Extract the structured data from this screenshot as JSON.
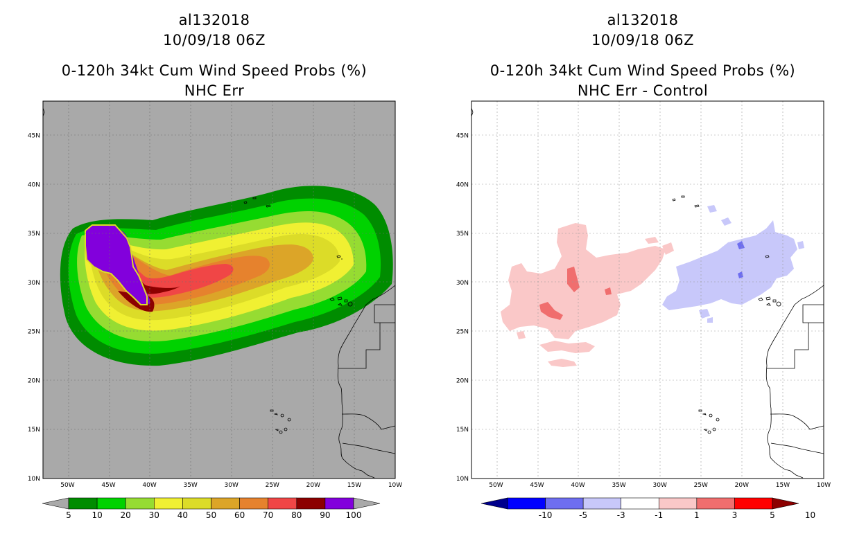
{
  "left": {
    "storm_id": "al132018",
    "datetime": "10/09/18 06Z",
    "title": "0-120h 34kt Cum Wind Speed Probs (%)",
    "subtitle": "NHC Err",
    "colorbar": {
      "labels": [
        "5",
        "10",
        "20",
        "30",
        "40",
        "50",
        "60",
        "70",
        "80",
        "90",
        "100"
      ],
      "colors": [
        "#008c00",
        "#00d200",
        "#96dc32",
        "#f0f032",
        "#dcdc28",
        "#dca528",
        "#e6822d",
        "#f04646",
        "#8c0000",
        "#8200dc"
      ],
      "under": "#a9a9a9",
      "over": "#a9a9a9"
    },
    "background": "#a9a9a9"
  },
  "right": {
    "storm_id": "al132018",
    "datetime": "10/09/18 06Z",
    "title": "0-120h 34kt Cum Wind Speed Probs (%)",
    "subtitle": "NHC Err - Control",
    "colorbar": {
      "labels": [
        "-10",
        "-5",
        "-3",
        "-1",
        "1",
        "3",
        "5",
        "10"
      ],
      "colors": [
        "#0000ff",
        "#6e6ef0",
        "#c8c8fa",
        "#ffffff",
        "#fac8c8",
        "#f06e6e",
        "#ff0000"
      ],
      "under": "#00008c",
      "over": "#8c0000"
    },
    "background": "#ffffff"
  },
  "axes": {
    "lon_ticks": [
      "50W",
      "45W",
      "40W",
      "35W",
      "30W",
      "25W",
      "20W",
      "15W",
      "10W"
    ],
    "lat_ticks": [
      "10N",
      "15N",
      "20N",
      "25N",
      "30N",
      "35N",
      "40N",
      "45N"
    ]
  },
  "map_extent": {
    "lon_min": -53,
    "lon_max": -10,
    "lat_min": 10,
    "lat_max": 48.5
  }
}
